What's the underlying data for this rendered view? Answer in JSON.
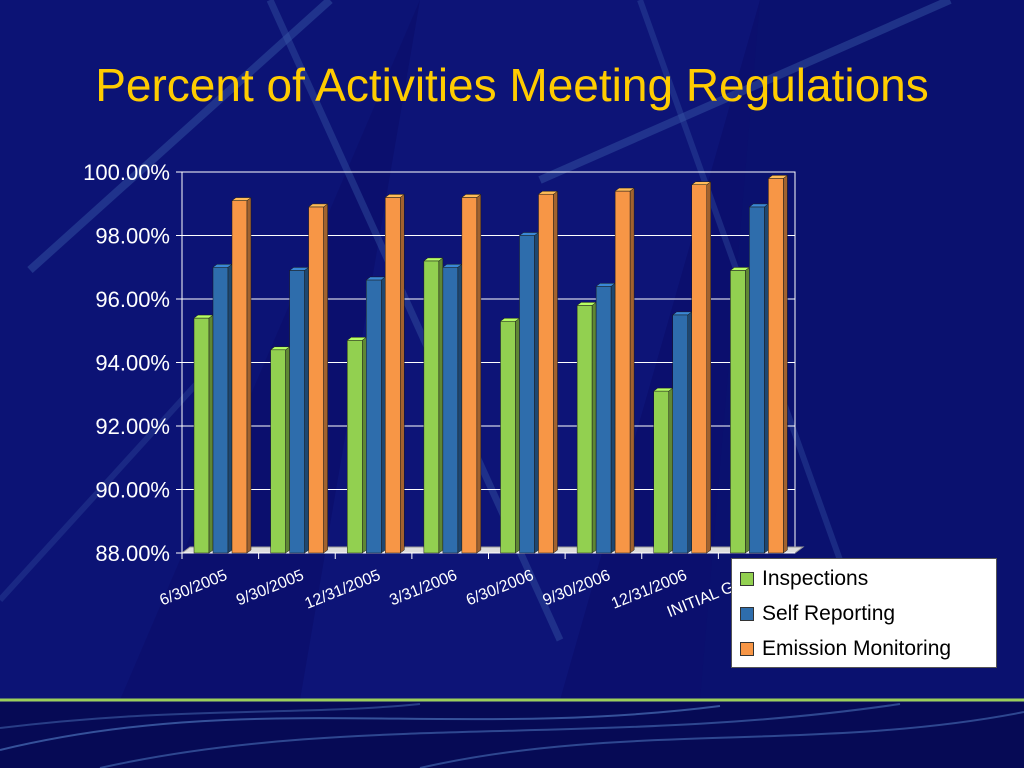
{
  "slide": {
    "title": "Percent of Activities Meeting Regulations"
  },
  "colors": {
    "background": "#0b0f6e",
    "title": "#ffcc00",
    "inspections": "#92d050",
    "self_reporting": "#2e6dac",
    "emission_monitoring": "#f79646"
  },
  "legend": {
    "items": [
      "Inspections",
      "Self Reporting",
      "Emission Monitoring"
    ]
  },
  "chart_data": {
    "type": "bar",
    "title": "Percent of Activities Meeting Regulations",
    "xlabel": "",
    "ylabel": "",
    "categories": [
      "6/30/2005",
      "9/30/2005",
      "12/31/2005",
      "3/31/2006",
      "6/30/2006",
      "9/30/2006",
      "12/31/2006",
      "INITIAL GOAL"
    ],
    "series": [
      {
        "name": "Inspections",
        "values": [
          95.4,
          94.4,
          94.7,
          97.2,
          95.3,
          95.8,
          93.1,
          96.9
        ]
      },
      {
        "name": "Self Reporting",
        "values": [
          97.0,
          96.9,
          96.6,
          97.0,
          98.0,
          96.4,
          95.5,
          98.9
        ]
      },
      {
        "name": "Emission Monitoring",
        "values": [
          99.1,
          98.9,
          99.2,
          99.2,
          99.3,
          99.4,
          99.6,
          99.8
        ]
      }
    ],
    "ylim": [
      88,
      100
    ],
    "yticks": [
      "88.00%",
      "90.00%",
      "92.00%",
      "94.00%",
      "96.00%",
      "98.00%",
      "100.00%"
    ],
    "grid": true,
    "legend_position": "bottom-right",
    "style": "3d-clustered-column"
  }
}
